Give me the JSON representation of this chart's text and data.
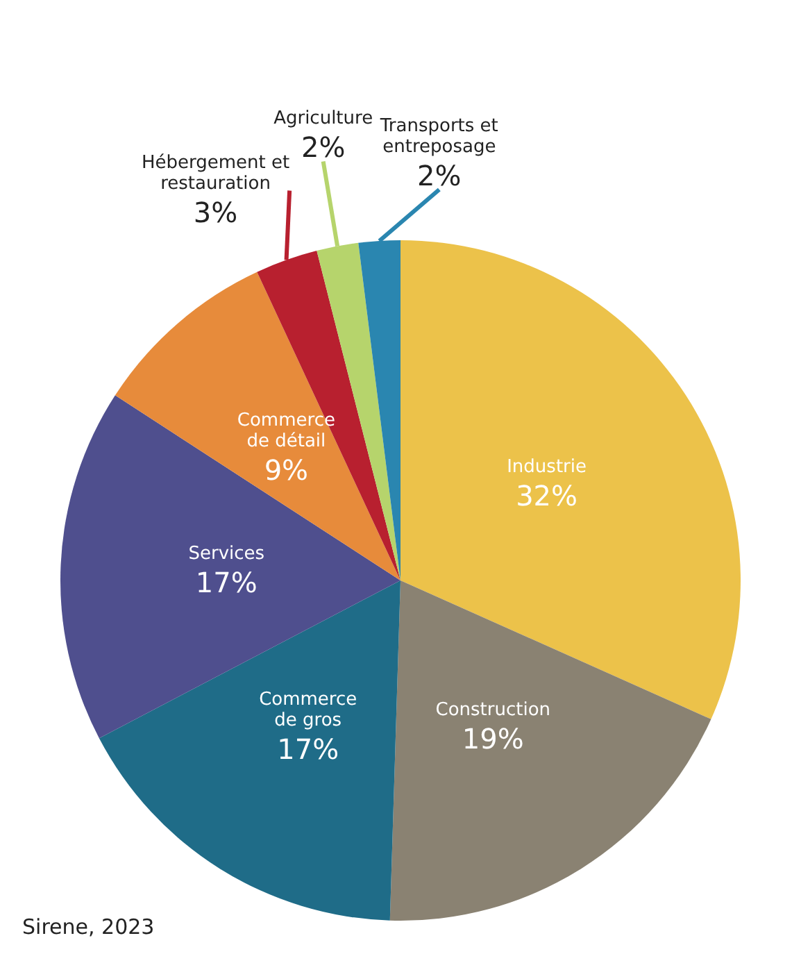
{
  "chart_data": {
    "type": "pie",
    "categories": [
      "Industrie",
      "Construction",
      "Commerce\nde gros",
      "Services",
      "Commerce\nde détail",
      "Hébergement et\nrestauration",
      "Agriculture",
      "Transports et\nentreposage"
    ],
    "values": [
      32,
      19,
      17,
      17,
      9,
      3,
      2,
      2
    ],
    "colors": [
      "#ecc24a",
      "#8a8272",
      "#1f6c88",
      "#4f4f8e",
      "#e78b3b",
      "#b8202f",
      "#b6d46c",
      "#2a86b0"
    ],
    "value_labels": [
      "32%",
      "19%",
      "17%",
      "17%",
      "9%",
      "3%",
      "2%",
      "2%"
    ],
    "legend": false,
    "annotations": [
      "Sirene, 2023"
    ]
  }
}
